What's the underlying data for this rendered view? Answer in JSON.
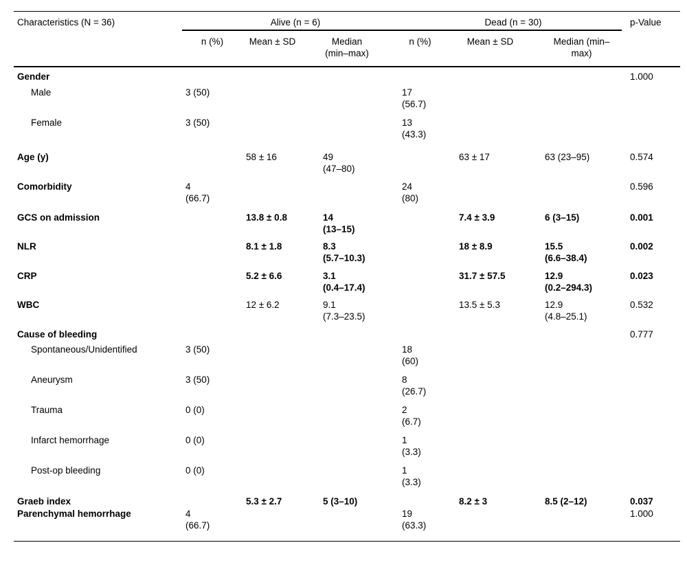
{
  "table": {
    "col1_header": "Characteristics (N = 36)",
    "groups": [
      {
        "label": "Alive (n = 6)"
      },
      {
        "label": "Dead (n = 30)"
      }
    ],
    "pvalue_header": "p-Value",
    "subheaders": {
      "alive_n": "n (%)",
      "alive_mean": "Mean ± SD",
      "alive_median": "Median\n(min–max)",
      "dead_n": "n (%)",
      "dead_mean": "Mean ± SD",
      "dead_median": "Median (min–\nmax)"
    },
    "colors": {
      "text": "#000000",
      "rule": "#000000",
      "background": "#ffffff"
    },
    "rows": [
      {
        "label": "Gender",
        "bold": true,
        "indent": false,
        "values_bold": false,
        "alive_n": "",
        "alive_mean": "",
        "alive_median": "",
        "dead_n": "",
        "dead_mean": "",
        "dead_median": "",
        "p": "1.000"
      },
      {
        "label": "Male",
        "bold": false,
        "indent": true,
        "values_bold": false,
        "alive_n": "3 (50)",
        "alive_mean": "",
        "alive_median": "",
        "dead_n": "17\n(56.7)",
        "dead_mean": "",
        "dead_median": "",
        "p": ""
      },
      {
        "label": "Female",
        "bold": false,
        "indent": true,
        "values_bold": false,
        "alive_n": "3 (50)",
        "alive_mean": "",
        "alive_median": "",
        "dead_n": "13\n(43.3)",
        "dead_mean": "",
        "dead_median": "",
        "p": ""
      },
      {
        "label": "Age (y)",
        "bold": true,
        "indent": false,
        "values_bold": false,
        "alive_n": "",
        "alive_mean": "58 ± 16",
        "alive_median": "49\n(47–80)",
        "dead_n": "",
        "dead_mean": "63 ± 17",
        "dead_median": "63 (23–95)",
        "p": "0.574"
      },
      {
        "label": "Comorbidity",
        "bold": true,
        "indent": false,
        "values_bold": false,
        "alive_n": "4\n(66.7)",
        "alive_mean": "",
        "alive_median": "",
        "dead_n": "24\n(80)",
        "dead_mean": "",
        "dead_median": "",
        "p": "0.596"
      },
      {
        "label": "GCS on admission",
        "bold": true,
        "indent": false,
        "values_bold": true,
        "alive_n": "",
        "alive_mean": "13.8 ± 0.8",
        "alive_median": "14\n(13–15)",
        "dead_n": "",
        "dead_mean": "7.4 ± 3.9",
        "dead_median": "6 (3–15)",
        "p": "0.001"
      },
      {
        "label": "NLR",
        "bold": true,
        "indent": false,
        "values_bold": true,
        "alive_n": "",
        "alive_mean": "8.1 ± 1.8",
        "alive_median": "8.3\n(5.7–10.3)",
        "dead_n": "",
        "dead_mean": "18 ± 8.9",
        "dead_median": "15.5\n(6.6–38.4)",
        "p": "0.002"
      },
      {
        "label": "CRP",
        "bold": true,
        "indent": false,
        "values_bold": true,
        "alive_n": "",
        "alive_mean": "5.2 ± 6.6",
        "alive_median": "3.1\n(0.4–17.4)",
        "dead_n": "",
        "dead_mean": "31.7 ± 57.5",
        "dead_median": "12.9\n(0.2–294.3)",
        "p": "0.023"
      },
      {
        "label": "WBC",
        "bold": true,
        "indent": false,
        "values_bold": false,
        "alive_n": "",
        "alive_mean": "12 ± 6.2",
        "alive_median": "9.1\n(7.3–23.5)",
        "dead_n": "",
        "dead_mean": "13.5 ± 5.3",
        "dead_median": "12.9\n(4.8–25.1)",
        "p": "0.532"
      },
      {
        "label": "Cause of bleeding",
        "bold": true,
        "indent": false,
        "values_bold": false,
        "alive_n": "",
        "alive_mean": "",
        "alive_median": "",
        "dead_n": "",
        "dead_mean": "",
        "dead_median": "",
        "p": "0.777"
      },
      {
        "label": "Spontaneous/Unidentified",
        "bold": false,
        "indent": true,
        "values_bold": false,
        "alive_n": "3 (50)",
        "alive_mean": "",
        "alive_median": "",
        "dead_n": "18\n(60)",
        "dead_mean": "",
        "dead_median": "",
        "p": ""
      },
      {
        "label": "Aneurysm",
        "bold": false,
        "indent": true,
        "values_bold": false,
        "alive_n": "3 (50)",
        "alive_mean": "",
        "alive_median": "",
        "dead_n": "8\n(26.7)",
        "dead_mean": "",
        "dead_median": "",
        "p": ""
      },
      {
        "label": "Trauma",
        "bold": false,
        "indent": true,
        "values_bold": false,
        "alive_n": "0 (0)",
        "alive_mean": "",
        "alive_median": "",
        "dead_n": "2\n(6.7)",
        "dead_mean": "",
        "dead_median": "",
        "p": ""
      },
      {
        "label": "Infarct hemorrhage",
        "bold": false,
        "indent": true,
        "values_bold": false,
        "alive_n": "0 (0)",
        "alive_mean": "",
        "alive_median": "",
        "dead_n": "1\n(3.3)",
        "dead_mean": "",
        "dead_median": "",
        "p": ""
      },
      {
        "label": "Post-op bleeding",
        "bold": false,
        "indent": true,
        "values_bold": false,
        "alive_n": "0 (0)",
        "alive_mean": "",
        "alive_median": "",
        "dead_n": "1\n(3.3)",
        "dead_mean": "",
        "dead_median": "",
        "p": ""
      },
      {
        "label": "Graeb index",
        "bold": true,
        "indent": false,
        "values_bold": true,
        "alive_n": "",
        "alive_mean": "5.3 ± 2.7",
        "alive_median": "5 (3–10)",
        "dead_n": "",
        "dead_mean": "8.2 ± 3",
        "dead_median": "8.5 (2–12)",
        "p": "0.037"
      },
      {
        "label": "Parenchymal hemorrhage",
        "bold": true,
        "indent": false,
        "values_bold": false,
        "alive_n": "4\n(66.7)",
        "alive_mean": "",
        "alive_median": "",
        "dead_n": "19\n(63.3)",
        "dead_mean": "",
        "dead_median": "",
        "p": "1.000"
      }
    ]
  }
}
